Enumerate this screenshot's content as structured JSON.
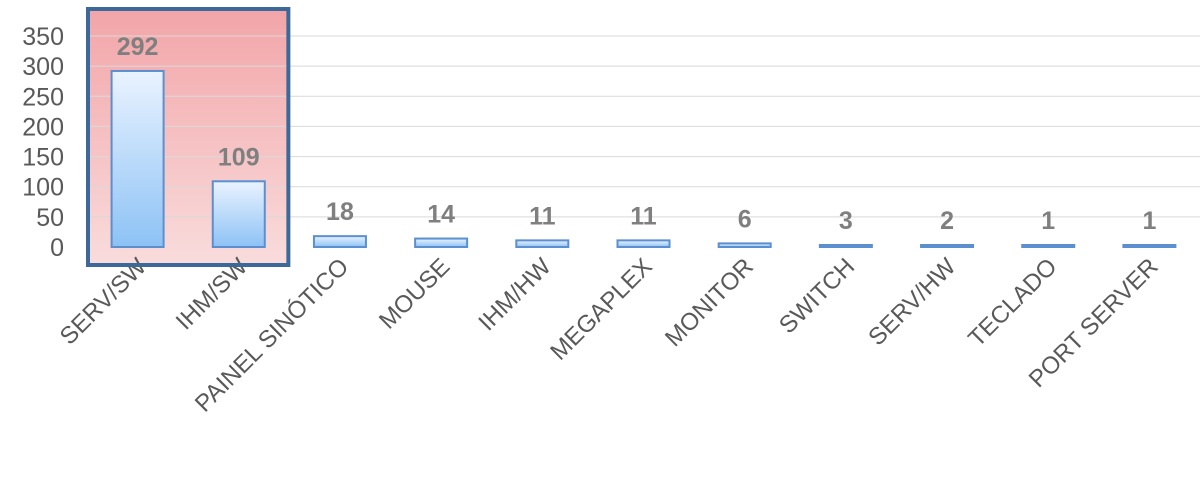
{
  "chart_data": {
    "type": "bar",
    "categories": [
      "SERV/SW",
      "IHM/SW",
      "PAINEL SINÓTICO",
      "MOUSE",
      "IHM/HW",
      "MEGAPLEX",
      "MONITOR",
      "SWITCH",
      "SERV/HW",
      "TECLADO",
      "PORT SERVER"
    ],
    "values": [
      292,
      109,
      18,
      14,
      11,
      11,
      6,
      3,
      2,
      1,
      1
    ],
    "data_labels": [
      "292",
      "109",
      "18",
      "14",
      "11",
      "11",
      "6",
      "3",
      "2",
      "1",
      "1"
    ],
    "y_ticks": [
      "0",
      "50",
      "100",
      "150",
      "200",
      "250",
      "300",
      "350"
    ],
    "y_tick_values": [
      0,
      50,
      100,
      150,
      200,
      250,
      300,
      350
    ],
    "ylim": [
      0,
      350
    ],
    "title": "",
    "xlabel": "",
    "ylabel": "",
    "grid": true,
    "legend": "none",
    "highlight": {
      "categories": [
        "SERV/SW",
        "IHM/SW"
      ],
      "fill_color": "#f4b6b6",
      "border_color": "#3b6a9a"
    },
    "bar_color_top": "#eaf3ff",
    "bar_color_bottom": "#8dc2f5",
    "bar_border_color": "#5b8fd0"
  }
}
